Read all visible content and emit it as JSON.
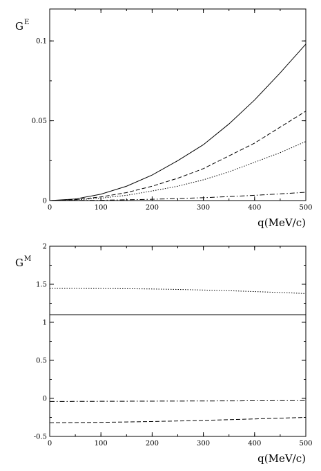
{
  "chart_data": [
    {
      "type": "line",
      "ylabel": "G",
      "ylabel_sup": "E",
      "xlabel": "q(MeV/c)",
      "xlim": [
        0,
        500
      ],
      "ylim": [
        0,
        0.12
      ],
      "xticks": [
        0,
        100,
        200,
        300,
        400,
        500
      ],
      "xtick_labels": [
        "0",
        "100",
        "200",
        "300",
        "400",
        "500"
      ],
      "yticks": [
        0,
        0.05,
        0.1
      ],
      "ytick_labels": [
        "0",
        "0.05",
        "0.1"
      ],
      "grid": false,
      "series": [
        {
          "style": "solid",
          "x": [
            0,
            50,
            100,
            150,
            200,
            250,
            300,
            350,
            400,
            450,
            500
          ],
          "y": [
            0,
            0.001,
            0.004,
            0.009,
            0.016,
            0.025,
            0.035,
            0.048,
            0.063,
            0.08,
            0.098
          ]
        },
        {
          "style": "dashed",
          "x": [
            0,
            50,
            100,
            150,
            200,
            250,
            300,
            350,
            400,
            450,
            500
          ],
          "y": [
            0,
            0.0006,
            0.0023,
            0.005,
            0.009,
            0.014,
            0.02,
            0.028,
            0.036,
            0.046,
            0.056
          ]
        },
        {
          "style": "dotted",
          "x": [
            0,
            50,
            100,
            150,
            200,
            250,
            300,
            350,
            400,
            450,
            500
          ],
          "y": [
            0,
            0.0004,
            0.0015,
            0.0033,
            0.006,
            0.009,
            0.013,
            0.018,
            0.024,
            0.03,
            0.037
          ]
        },
        {
          "style": "dashdot",
          "x": [
            0,
            50,
            100,
            150,
            200,
            250,
            300,
            350,
            400,
            450,
            500
          ],
          "y": [
            0,
            0.0001,
            0.0002,
            0.0005,
            0.0008,
            0.0013,
            0.0018,
            0.0025,
            0.0033,
            0.0042,
            0.0052
          ]
        }
      ]
    },
    {
      "type": "line",
      "ylabel": "G",
      "ylabel_sup": "M",
      "xlabel": "q(MeV/c)",
      "xlim": [
        0,
        500
      ],
      "ylim": [
        -0.5,
        2
      ],
      "xticks": [
        0,
        100,
        200,
        300,
        400,
        500
      ],
      "xtick_labels": [
        "0",
        "100",
        "200",
        "300",
        "400",
        "500"
      ],
      "yticks": [
        -0.5,
        0,
        0.5,
        1,
        1.5,
        2
      ],
      "ytick_labels": [
        "-0.5",
        "0",
        "0.5",
        "1",
        "1.5",
        "2"
      ],
      "grid": false,
      "series": [
        {
          "style": "dotted",
          "x": [
            0,
            50,
            100,
            150,
            200,
            250,
            300,
            350,
            400,
            450,
            500
          ],
          "y": [
            1.445,
            1.445,
            1.444,
            1.442,
            1.438,
            1.432,
            1.424,
            1.415,
            1.404,
            1.392,
            1.378
          ]
        },
        {
          "style": "solid",
          "x": [
            0,
            100,
            200,
            300,
            400,
            500
          ],
          "y": [
            1.1,
            1.1,
            1.1,
            1.1,
            1.1,
            1.1
          ]
        },
        {
          "style": "dashdot",
          "x": [
            0,
            100,
            200,
            300,
            400,
            500
          ],
          "y": [
            -0.04,
            -0.038,
            -0.036,
            -0.034,
            -0.032,
            -0.03
          ]
        },
        {
          "style": "dashed",
          "x": [
            0,
            50,
            100,
            150,
            200,
            250,
            300,
            350,
            400,
            450,
            500
          ],
          "y": [
            -0.32,
            -0.318,
            -0.315,
            -0.31,
            -0.304,
            -0.297,
            -0.289,
            -0.28,
            -0.27,
            -0.26,
            -0.25
          ]
        }
      ]
    }
  ]
}
